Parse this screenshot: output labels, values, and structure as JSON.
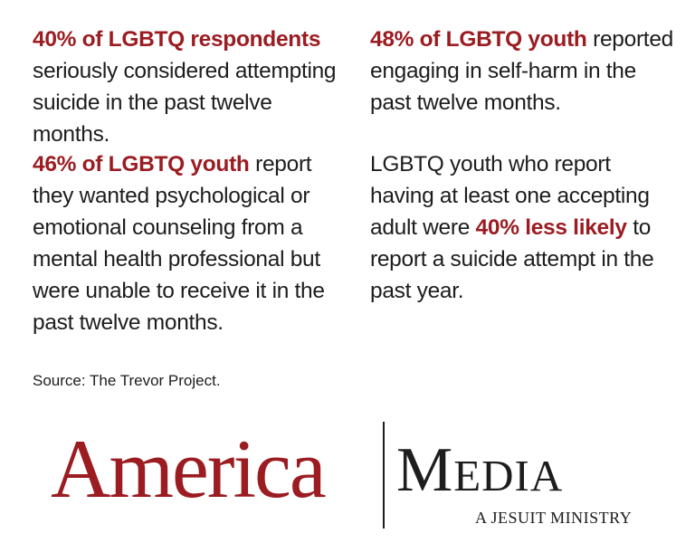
{
  "stats": [
    {
      "highlight": "40% of LGBTQ respondents",
      "text": " seriously considered attempting suicide in the past twelve months."
    },
    {
      "highlight": "48% of LGBTQ youth",
      "text": " reported engaging in self-harm in the past twelve months."
    },
    {
      "highlight": "46% of LGBTQ youth",
      "text": " report they wanted psychological or emotional counseling from a mental health professional but were unable to receive it in the past twelve months."
    },
    {
      "before": "LGBTQ youth who report having at least one accepting adult were ",
      "highlight": "40% less likely",
      "after": " to report a suicide attempt in the past year."
    }
  ],
  "source": "Source: The Trevor Project.",
  "logo": {
    "name_left": "America",
    "name_right": "Media",
    "tagline": "A JESUIT MINISTRY"
  },
  "colors": {
    "accent": "#9b1c21",
    "text": "#1d1d1d",
    "background": "#ffffff"
  }
}
